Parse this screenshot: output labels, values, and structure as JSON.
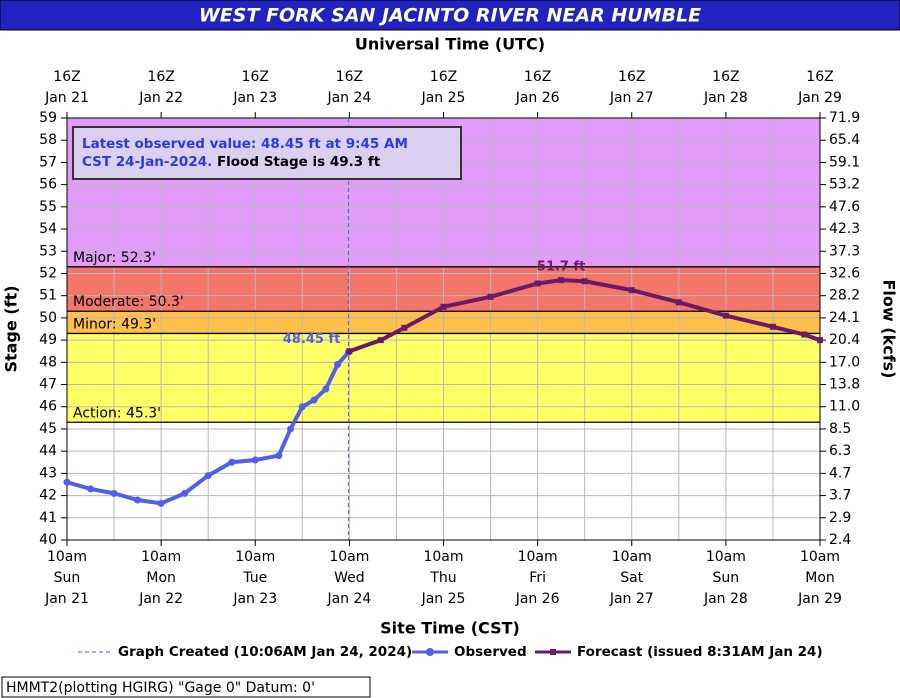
{
  "chart_data": {
    "type": "hydrograph",
    "title": "WEST FORK SAN JACINTO RIVER NEAR HUMBLE",
    "x2_title": "Universal Time (UTC)",
    "x_title": "Site Time (CST)",
    "y_title": "Stage (ft)",
    "y2_title": "Flow (kcfs)",
    "grid": true,
    "xlim": [
      "Jan 21 10:00",
      "Jan 29 10:00"
    ],
    "xticks": [
      {
        "value": "Jan 21 10:00",
        "label": [
          "10am",
          "Sun",
          "Jan 21"
        ]
      },
      {
        "value": "Jan 22 10:00",
        "label": [
          "10am",
          "Mon",
          "Jan 22"
        ]
      },
      {
        "value": "Jan 23 10:00",
        "label": [
          "10am",
          "Tue",
          "Jan 23"
        ]
      },
      {
        "value": "Jan 24 10:00",
        "label": [
          "10am",
          "Wed",
          "Jan 24"
        ]
      },
      {
        "value": "Jan 25 10:00",
        "label": [
          "10am",
          "Thu",
          "Jan 25"
        ]
      },
      {
        "value": "Jan 26 10:00",
        "label": [
          "10am",
          "Fri",
          "Jan 26"
        ]
      },
      {
        "value": "Jan 27 10:00",
        "label": [
          "10am",
          "Sat",
          "Jan 27"
        ]
      },
      {
        "value": "Jan 28 10:00",
        "label": [
          "10am",
          "Sun",
          "Jan 28"
        ]
      },
      {
        "value": "Jan 29 10:00",
        "label": [
          "10am",
          "Mon",
          "Jan 29"
        ]
      }
    ],
    "x2ticks": [
      {
        "value": "Jan 21 10:00",
        "label": [
          "16Z",
          "Jan 21"
        ]
      },
      {
        "value": "Jan 22 10:00",
        "label": [
          "16Z",
          "Jan 22"
        ]
      },
      {
        "value": "Jan 23 10:00",
        "label": [
          "16Z",
          "Jan 23"
        ]
      },
      {
        "value": "Jan 24 10:00",
        "label": [
          "16Z",
          "Jan 24"
        ]
      },
      {
        "value": "Jan 25 10:00",
        "label": [
          "16Z",
          "Jan 25"
        ]
      },
      {
        "value": "Jan 26 10:00",
        "label": [
          "16Z",
          "Jan 26"
        ]
      },
      {
        "value": "Jan 27 10:00",
        "label": [
          "16Z",
          "Jan 27"
        ]
      },
      {
        "value": "Jan 28 10:00",
        "label": [
          "16Z",
          "Jan 28"
        ]
      },
      {
        "value": "Jan 29 10:00",
        "label": [
          "16Z",
          "Jan 29"
        ]
      }
    ],
    "ylim": [
      40,
      59
    ],
    "yticks": [
      40,
      41,
      42,
      43,
      44,
      45,
      46,
      47,
      48,
      49,
      50,
      51,
      52,
      53,
      54,
      55,
      56,
      57,
      58,
      59
    ],
    "y2ticks": [
      2.4,
      2.9,
      3.7,
      4.7,
      6.3,
      8.5,
      {
        "value": 11,
        "label": "11.0"
      },
      13.8,
      {
        "value": 17,
        "label": "17.0"
      },
      20.4,
      24.1,
      28.2,
      32.6,
      37.3,
      42.3,
      47.6,
      53.2,
      59.1,
      65.4,
      71.9
    ],
    "flood_stages": [
      {
        "value": 45.3,
        "label": "Action: 45.3'",
        "color": "#ffff66"
      },
      {
        "value": 49.3,
        "label": "Minor: 49.3'",
        "color": "#ffc04a"
      },
      {
        "value": 50.3,
        "label": "Moderate: 50.3'",
        "color": "#f4766a"
      },
      {
        "value": 52.3,
        "label": "Major: 52.3'",
        "color": "#e09cf8"
      }
    ],
    "series": [
      {
        "name": "Observed",
        "color": "#4f5ff0",
        "marker": "circle",
        "x": [
          "Jan 21 10:00",
          "Jan 21 16:00",
          "Jan 21 22:00",
          "Jan 22 04:00",
          "Jan 22 10:00",
          "Jan 22 16:00",
          "Jan 22 22:00",
          "Jan 23 04:00",
          "Jan 23 10:00",
          "Jan 23 16:00",
          "Jan 23 19:00",
          "Jan 23 22:00",
          "Jan 24 01:00",
          "Jan 24 04:00",
          "Jan 24 07:00",
          "Jan 24 09:45"
        ],
        "values": [
          42.6,
          42.3,
          42.1,
          41.8,
          41.65,
          42.1,
          42.9,
          43.5,
          43.6,
          43.8,
          45.0,
          46.0,
          46.3,
          46.8,
          47.9,
          48.45
        ]
      },
      {
        "name": "Forecast (issued 8:31AM Jan 24)",
        "color": "#6a1a68",
        "marker": "square",
        "x": [
          "Jan 24 10:00",
          "Jan 24 18:00",
          "Jan 25 00:00",
          "Jan 25 10:00",
          "Jan 25 22:00",
          "Jan 26 10:00",
          "Jan 26 16:00",
          "Jan 26 22:00",
          "Jan 27 10:00",
          "Jan 27 22:00",
          "Jan 28 10:00",
          "Jan 28 22:00",
          "Jan 29 06:00",
          "Jan 29 10:00"
        ],
        "values": [
          48.5,
          49.0,
          49.55,
          50.5,
          50.95,
          51.55,
          51.7,
          51.65,
          51.25,
          50.7,
          50.1,
          49.6,
          49.25,
          49.0
        ]
      }
    ],
    "created": {
      "x": "Jan 24 09:45",
      "name": "Graph Created (10:06AM Jan 24, 2024)",
      "color": "#4f5ff0"
    },
    "annotations": [
      {
        "text": "48.45 ft",
        "x": "Jan 24 09:45",
        "y": 48.45,
        "color": "#4f5ff0"
      },
      {
        "text": "51.7 ft",
        "x": "Jan 26 16:00",
        "y": 51.7,
        "color": "#6a1a68"
      }
    ],
    "info_box": {
      "observed_text": [
        "Latest observed value: 48.45 ft at 9:45 AM",
        "CST 24-Jan-2024."
      ],
      "flood_text": "Flood Stage is 49.3 ft"
    },
    "footer": "HMMT2(plotting HGIRG) \"Gage 0\" Datum: 0'"
  }
}
